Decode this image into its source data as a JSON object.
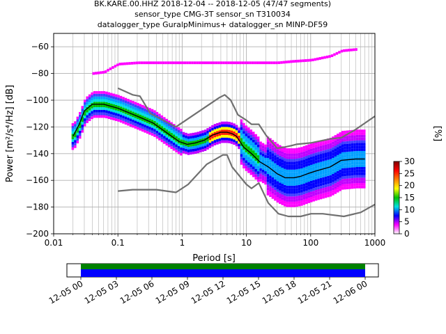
{
  "header": {
    "line1": "BK.KARE.00.HHZ   2018-12-04 -- 2018-12-05  (47/47 segments)",
    "line2": "sensor_type CMG-3T sensor_sn T310034",
    "line3": "datalogger_type GuralpMinimus+ datalogger_sn MINP-DF59"
  },
  "colorbar": {
    "label": "[%]",
    "ticks": [
      "0",
      "5",
      "10",
      "15",
      "20",
      "25",
      "30"
    ],
    "range": [
      0,
      30
    ],
    "colors": [
      "#ffffff",
      "#ff00ff",
      "#0000ff",
      "#00e0e0",
      "#00c000",
      "#ffff00",
      "#ff8000",
      "#ff0000",
      "#800000"
    ]
  },
  "timeline": {
    "tick_labels": [
      "12-05 00",
      "12-05 03",
      "12-05 06",
      "12-05 09",
      "12-05 12",
      "12-05 15",
      "12-05 18",
      "12-05 21",
      "12-06 00"
    ],
    "coverage_colors": [
      "#008000",
      "#0000ff"
    ]
  },
  "chart_data": {
    "type": "heatmap",
    "title": "BK.KARE.00.HHZ   2018-12-04 -- 2018-12-05  (47/47 segments)",
    "xlabel": "Period [s]",
    "ylabel": "Power [m²/s⁴/Hz] [dB]",
    "xscale": "log",
    "xlim": [
      0.01,
      1000
    ],
    "ylim": [
      -200,
      -50
    ],
    "x_tick_labels": [
      "0.01",
      "0.1",
      "1",
      "10",
      "100",
      "1000"
    ],
    "y_ticks": [
      -200,
      -180,
      -160,
      -140,
      -120,
      -100,
      -80,
      -60
    ],
    "grid": true,
    "series": [
      {
        "role": "noise-model-high",
        "color": "#707070",
        "x": [
          0.1,
          0.17,
          0.22,
          0.32,
          0.8,
          3.8,
          4.6,
          5.7,
          7.4,
          10,
          12,
          15.6,
          20,
          30,
          40,
          50,
          60,
          100,
          200,
          300,
          500,
          1000
        ],
        "y": [
          -91,
          -96,
          -97,
          -110,
          -120,
          -98,
          -96,
          -100,
          -111,
          -115,
          -118,
          -118,
          -126,
          -136,
          -135,
          -134,
          -133,
          -132,
          -129,
          -128,
          -122,
          -112
        ]
      },
      {
        "role": "noise-model-low",
        "color": "#707070",
        "x": [
          0.1,
          0.17,
          0.4,
          0.8,
          1.24,
          2.4,
          4.3,
          5,
          6,
          10,
          12,
          15.6,
          21.9,
          31.6,
          45,
          70,
          101,
          154,
          328,
          600,
          1000
        ],
        "y": [
          -168,
          -167,
          -167,
          -169,
          -163,
          -148,
          -141,
          -141,
          -150,
          -163,
          -166,
          -162,
          -177,
          -185,
          -187,
          -187,
          -185,
          -185,
          -187,
          -184,
          -178
        ]
      },
      {
        "role": "mode",
        "color": "#000000",
        "x": [
          0.02,
          0.025,
          0.03,
          0.04,
          0.06,
          0.1,
          0.2,
          0.35,
          0.6,
          0.9,
          1.2,
          1.6,
          2.2,
          3,
          4,
          5,
          6,
          7,
          9,
          12,
          16,
          22,
          30,
          40,
          55,
          70,
          90,
          120,
          200,
          300,
          500,
          700
        ],
        "y": [
          -127,
          -118,
          -108,
          -103,
          -103,
          -106,
          -112,
          -117,
          -125,
          -131,
          -133,
          -132,
          -130,
          -126,
          -124,
          -124,
          -125,
          -127,
          -135,
          -140,
          -146,
          -150,
          -155,
          -158,
          -158,
          -157,
          -155,
          -153,
          -150,
          -145,
          -144,
          -144
        ]
      },
      {
        "role": "upper-envelope",
        "color": "#ff00ff",
        "x": [
          0.04,
          0.06,
          0.07,
          0.1,
          0.2,
          0.4,
          1,
          2,
          5,
          10,
          20,
          30,
          50,
          100,
          200,
          300,
          500
        ],
        "y": [
          -80,
          -79,
          -77,
          -73,
          -72,
          -72,
          -72,
          -72,
          -72,
          -72,
          -72,
          -72,
          -71,
          -70,
          -67,
          -63,
          -62
        ]
      }
    ]
  }
}
